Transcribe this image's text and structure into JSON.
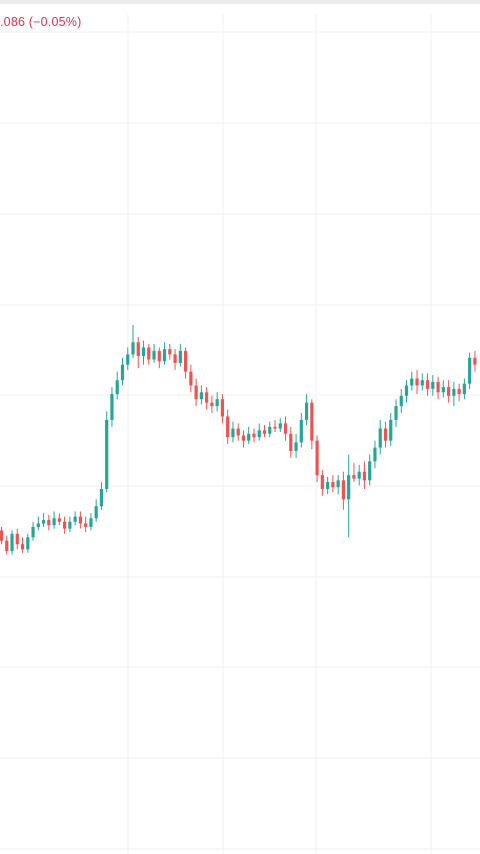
{
  "header": {
    "price_change_text": ".086 (−0.05%)",
    "negative_color": "#e2324f"
  },
  "chart_data": {
    "type": "candlestick",
    "title": "",
    "xlabel": "",
    "ylabel": "",
    "grid": true,
    "up_color": "#26a69a",
    "down_color": "#ef5350",
    "y_unit_note_hidden": "",
    "ohlc": [
      [
        16,
        10,
        18,
        8
      ],
      [
        10,
        4,
        13,
        2
      ],
      [
        4,
        14,
        16,
        2
      ],
      [
        14,
        8,
        17,
        5
      ],
      [
        8,
        5,
        12,
        3
      ],
      [
        5,
        12,
        14,
        3
      ],
      [
        12,
        18,
        21,
        10
      ],
      [
        18,
        20,
        24,
        16
      ],
      [
        20,
        22,
        26,
        18
      ],
      [
        22,
        19,
        25,
        16
      ],
      [
        19,
        23,
        27,
        17
      ],
      [
        23,
        21,
        26,
        19
      ],
      [
        21,
        17,
        24,
        14
      ],
      [
        17,
        21,
        24,
        15
      ],
      [
        21,
        24,
        27,
        19
      ],
      [
        24,
        20,
        27,
        17
      ],
      [
        20,
        18,
        24,
        15
      ],
      [
        18,
        23,
        26,
        16
      ],
      [
        23,
        30,
        34,
        21
      ],
      [
        30,
        40,
        44,
        28
      ],
      [
        40,
        80,
        85,
        38
      ],
      [
        80,
        95,
        99,
        76
      ],
      [
        95,
        103,
        108,
        92
      ],
      [
        103,
        112,
        116,
        100
      ],
      [
        112,
        118,
        122,
        109
      ],
      [
        118,
        125,
        135,
        116
      ],
      [
        125,
        117,
        128,
        110
      ],
      [
        117,
        122,
        126,
        112
      ],
      [
        122,
        115,
        124,
        112
      ],
      [
        115,
        120,
        124,
        113
      ],
      [
        120,
        114,
        122,
        110
      ],
      [
        114,
        121,
        125,
        112
      ],
      [
        121,
        118,
        124,
        115
      ],
      [
        118,
        113,
        121,
        109
      ],
      [
        113,
        120,
        124,
        111
      ],
      [
        120,
        108,
        122,
        104
      ],
      [
        108,
        100,
        112,
        96
      ],
      [
        100,
        92,
        104,
        88
      ],
      [
        92,
        96,
        100,
        89
      ],
      [
        96,
        90,
        99,
        86
      ],
      [
        90,
        88,
        94,
        84
      ],
      [
        88,
        92,
        96,
        85
      ],
      [
        92,
        82,
        95,
        78
      ],
      [
        82,
        70,
        86,
        66
      ],
      [
        70,
        75,
        79,
        67
      ],
      [
        75,
        71,
        78,
        68
      ],
      [
        71,
        68,
        74,
        64
      ],
      [
        68,
        72,
        76,
        66
      ],
      [
        72,
        70,
        75,
        67
      ],
      [
        70,
        74,
        78,
        68
      ],
      [
        74,
        72,
        77,
        70
      ],
      [
        72,
        76,
        79,
        70
      ],
      [
        76,
        75,
        80,
        73
      ],
      [
        75,
        78,
        81,
        73
      ],
      [
        78,
        72,
        82,
        68
      ],
      [
        72,
        62,
        76,
        58
      ],
      [
        62,
        67,
        72,
        58
      ],
      [
        67,
        80,
        84,
        64
      ],
      [
        80,
        90,
        95,
        77
      ],
      [
        90,
        68,
        92,
        63
      ],
      [
        68,
        48,
        71,
        44
      ],
      [
        48,
        40,
        51,
        36
      ],
      [
        40,
        44,
        47,
        37
      ],
      [
        44,
        41,
        48,
        38
      ],
      [
        41,
        45,
        48,
        37
      ],
      [
        45,
        34,
        50,
        28
      ],
      [
        34,
        48,
        60,
        12
      ],
      [
        48,
        46,
        55,
        44
      ],
      [
        46,
        50,
        54,
        42
      ],
      [
        50,
        45,
        56,
        40
      ],
      [
        45,
        56,
        60,
        42
      ],
      [
        56,
        64,
        68,
        52
      ],
      [
        64,
        75,
        80,
        60
      ],
      [
        75,
        68,
        79,
        64
      ],
      [
        68,
        80,
        84,
        65
      ],
      [
        80,
        88,
        92,
        76
      ],
      [
        88,
        94,
        98,
        84
      ],
      [
        94,
        100,
        103,
        90
      ],
      [
        100,
        104,
        108,
        97
      ],
      [
        104,
        100,
        109,
        95
      ],
      [
        100,
        103,
        107,
        97
      ],
      [
        103,
        98,
        107,
        94
      ],
      [
        98,
        102,
        106,
        94
      ],
      [
        102,
        96,
        105,
        92
      ],
      [
        96,
        99,
        103,
        93
      ],
      [
        99,
        94,
        103,
        90
      ],
      [
        94,
        98,
        102,
        88
      ],
      [
        98,
        95,
        101,
        91
      ],
      [
        95,
        101,
        104,
        92
      ],
      [
        101,
        116,
        119,
        98
      ],
      [
        116,
        112,
        120,
        108
      ]
    ]
  }
}
